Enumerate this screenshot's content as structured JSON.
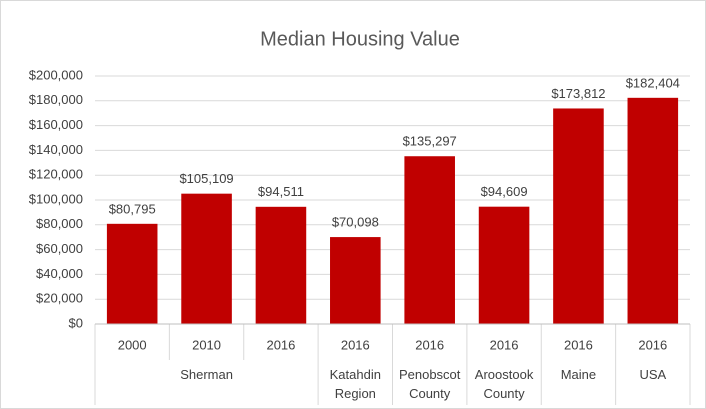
{
  "chart_data": {
    "type": "bar",
    "title": "Median Housing Value",
    "category_groups": [
      {
        "label": [
          "Sherman"
        ],
        "categories": [
          "2000",
          "2010",
          "2016"
        ]
      },
      {
        "label": [
          "Katahdin",
          "Region"
        ],
        "categories": [
          "2016"
        ]
      },
      {
        "label": [
          "Penobscot",
          "County"
        ],
        "categories": [
          "2016"
        ]
      },
      {
        "label": [
          "Aroostook",
          "County"
        ],
        "categories": [
          "2016"
        ]
      },
      {
        "label": [
          "Maine"
        ],
        "categories": [
          "2016"
        ]
      },
      {
        "label": [
          "USA"
        ],
        "categories": [
          "2016"
        ]
      }
    ],
    "values": [
      80795,
      105109,
      94511,
      70098,
      135297,
      94609,
      173812,
      182404
    ],
    "value_labels": [
      "$80,795",
      "$105,109",
      "$94,511",
      "$70,098",
      "$135,297",
      "$94,609",
      "$173,812",
      "$182,404"
    ],
    "color": "#c00000",
    "ylim": [
      0,
      200000
    ],
    "yticks": [
      {
        "value": 0,
        "label": "$0"
      },
      {
        "value": 20000,
        "label": "$20,000"
      },
      {
        "value": 40000,
        "label": "$40,000"
      },
      {
        "value": 60000,
        "label": "$60,000"
      },
      {
        "value": 80000,
        "label": "$80,000"
      },
      {
        "value": 100000,
        "label": "$100,000"
      },
      {
        "value": 120000,
        "label": "$120,000"
      },
      {
        "value": 140000,
        "label": "$140,000"
      },
      {
        "value": 160000,
        "label": "$160,000"
      },
      {
        "value": 180000,
        "label": "$180,000"
      },
      {
        "value": 200000,
        "label": "$200,000"
      }
    ],
    "grid": true
  }
}
